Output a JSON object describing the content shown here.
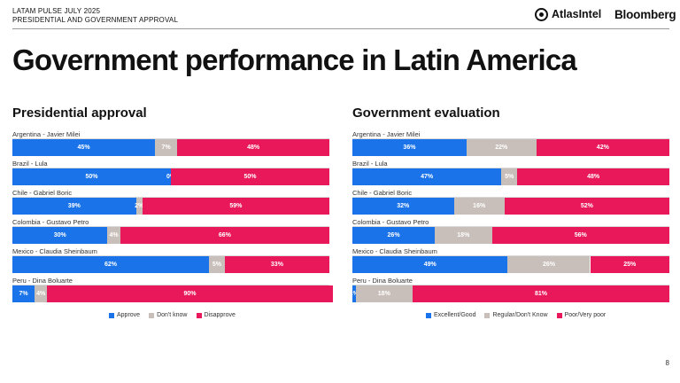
{
  "header": {
    "line1": "LATAM PULSE JULY 2025",
    "line2": "PRESIDENTIAL AND GOVERNMENT APPROVAL",
    "brand1": "AtlasIntel",
    "brand2": "Bloomberg"
  },
  "title": "Government performance in Latin America",
  "page_number": "8",
  "colors": {
    "blue": "#1a73e8",
    "gray": "#c8bfba",
    "red": "#e8185a"
  },
  "chart_data": [
    {
      "type": "bar",
      "stacked": true,
      "orientation": "horizontal",
      "title": "Presidential approval",
      "categories": [
        "Argentina - Javier Milei",
        "Brazil - Lula",
        "Chile - Gabriel Boric",
        "Colombia - Gustavo Petro",
        "Mexico - Claudia Sheinbaum",
        "Peru - Dina Boluarte"
      ],
      "series": [
        {
          "name": "Approve",
          "color": "#1a73e8",
          "values": [
            45,
            50,
            39,
            30,
            62,
            7
          ],
          "labels": [
            "45%",
            "50%",
            "39%",
            "30%",
            "62%",
            "7%"
          ]
        },
        {
          "name": "Don't know",
          "color": "#c8bfba",
          "values": [
            7,
            0,
            2,
            4,
            5,
            4
          ],
          "labels": [
            "7%",
            "0%",
            "2%",
            "4%",
            "5%",
            "4%"
          ]
        },
        {
          "name": "Disapprove",
          "color": "#e8185a",
          "values": [
            48,
            50,
            59,
            66,
            33,
            90
          ],
          "labels": [
            "48%",
            "50%",
            "59%",
            "66%",
            "33%",
            "90%"
          ]
        }
      ],
      "xlim": [
        0,
        100
      ],
      "legend": "bottom"
    },
    {
      "type": "bar",
      "stacked": true,
      "orientation": "horizontal",
      "title": "Government evaluation",
      "categories": [
        "Argentina - Javier Milei",
        "Brazil - Lula",
        "Chile - Gabriel Boric",
        "Colombia - Gustavo Petro",
        "Mexico - Claudia Sheinbaum",
        "Peru - Dina Boluarte"
      ],
      "series": [
        {
          "name": "Excellent/Good",
          "color": "#1a73e8",
          "values": [
            36,
            47,
            32,
            26,
            49,
            1
          ],
          "labels": [
            "36%",
            "47%",
            "32%",
            "26%",
            "49%",
            "1%"
          ]
        },
        {
          "name": "Regular/Don't Know",
          "color": "#c8bfba",
          "values": [
            22,
            5,
            16,
            18,
            26,
            18
          ],
          "labels": [
            "22%",
            "5%",
            "16%",
            "18%",
            "26%",
            "18%"
          ]
        },
        {
          "name": "Poor/Very poor",
          "color": "#e8185a",
          "values": [
            42,
            48,
            52,
            56,
            25,
            81
          ],
          "labels": [
            "42%",
            "48%",
            "52%",
            "56%",
            "25%",
            "81%"
          ]
        }
      ],
      "xlim": [
        0,
        100
      ],
      "legend": "bottom"
    }
  ]
}
